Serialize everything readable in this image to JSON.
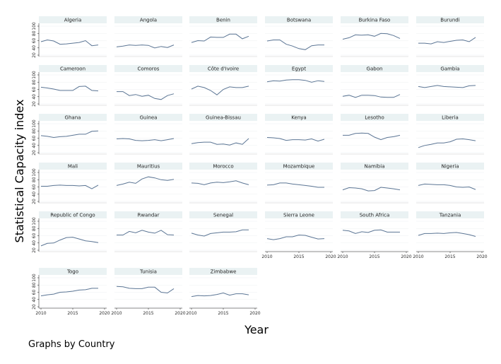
{
  "chart_data": {
    "type": "line",
    "ylabel": "Statistical Capacity index",
    "xlabel": "Year",
    "note": "Graphs by Country",
    "ylim": [
      20,
      100
    ],
    "xlim": [
      2010,
      2020
    ],
    "yticks": [
      "20",
      "40",
      "60",
      "80",
      "100"
    ],
    "xticks": [
      "2010",
      "2015",
      "2020"
    ],
    "x": [
      2010,
      2011,
      2012,
      2013,
      2014,
      2015,
      2016,
      2017,
      2018,
      2019
    ],
    "line_color": "#5b7594",
    "grid": true,
    "series": [
      {
        "name": "Algeria",
        "values": [
          57,
          62,
          59,
          50,
          51,
          53,
          55,
          60,
          46,
          48
        ]
      },
      {
        "name": "Angola",
        "values": [
          43,
          45,
          48,
          47,
          48,
          47,
          40,
          44,
          41,
          48
        ]
      },
      {
        "name": "Benin",
        "values": [
          55,
          60,
          59,
          70,
          69,
          69,
          78,
          78,
          65,
          72
        ]
      },
      {
        "name": "Botswana",
        "values": [
          59,
          62,
          62,
          50,
          45,
          38,
          35,
          46,
          48,
          48
        ]
      },
      {
        "name": "Burkina Faso",
        "values": [
          64,
          68,
          76,
          75,
          76,
          72,
          80,
          79,
          74,
          66
        ]
      },
      {
        "name": "Burundi",
        "values": [
          53,
          53,
          51,
          57,
          55,
          58,
          61,
          62,
          57,
          69
        ]
      },
      {
        "name": "Cameroon",
        "values": [
          66,
          64,
          61,
          57,
          57,
          57,
          68,
          69,
          57,
          56
        ]
      },
      {
        "name": "Comoros",
        "values": [
          54,
          54,
          43,
          46,
          41,
          44,
          35,
          32,
          43,
          48
        ]
      },
      {
        "name": "Côte d'Ivoire",
        "values": [
          61,
          69,
          65,
          57,
          45,
          60,
          67,
          65,
          65,
          69
        ]
      },
      {
        "name": "Egypt",
        "values": [
          81,
          84,
          83,
          86,
          87,
          87,
          85,
          80,
          84,
          82
        ]
      },
      {
        "name": "Gabon",
        "values": [
          41,
          44,
          38,
          44,
          44,
          43,
          39,
          38,
          38,
          46
        ]
      },
      {
        "name": "Gambia",
        "values": [
          68,
          65,
          68,
          71,
          68,
          67,
          66,
          65,
          70,
          71
        ]
      },
      {
        "name": "Ghana",
        "values": [
          67,
          65,
          62,
          64,
          65,
          68,
          71,
          71,
          79,
          80
        ]
      },
      {
        "name": "Guinea",
        "values": [
          58,
          59,
          58,
          54,
          53,
          54,
          56,
          53,
          56,
          59
        ]
      },
      {
        "name": "Guinea-Bissau",
        "values": [
          45,
          48,
          49,
          49,
          43,
          44,
          41,
          47,
          43,
          59
        ]
      },
      {
        "name": "Kenya",
        "values": [
          62,
          61,
          59,
          54,
          56,
          56,
          55,
          58,
          52,
          57
        ]
      },
      {
        "name": "Lesotho",
        "values": [
          68,
          68,
          73,
          74,
          73,
          63,
          56,
          62,
          64,
          68
        ]
      },
      {
        "name": "Liberia",
        "values": [
          34,
          40,
          43,
          47,
          47,
          50,
          57,
          58,
          56,
          53
        ]
      },
      {
        "name": "Mali",
        "values": [
          62,
          62,
          64,
          65,
          64,
          64,
          63,
          64,
          55,
          65
        ]
      },
      {
        "name": "Mauritius",
        "values": [
          64,
          68,
          73,
          70,
          82,
          88,
          85,
          80,
          78,
          81
        ]
      },
      {
        "name": "Morocco",
        "values": [
          71,
          70,
          66,
          71,
          73,
          72,
          74,
          77,
          71,
          66
        ]
      },
      {
        "name": "Mozambique",
        "values": [
          65,
          66,
          71,
          71,
          68,
          66,
          64,
          62,
          59,
          59
        ]
      },
      {
        "name": "Namibia",
        "values": [
          52,
          58,
          57,
          55,
          49,
          50,
          59,
          57,
          55,
          52
        ]
      },
      {
        "name": "Nigeria",
        "values": [
          64,
          68,
          67,
          66,
          66,
          64,
          60,
          59,
          60,
          53
        ]
      },
      {
        "name": "Republic of Congo",
        "values": [
          32,
          39,
          40,
          48,
          55,
          56,
          51,
          46,
          44,
          41
        ]
      },
      {
        "name": "Rwandar",
        "values": [
          62,
          62,
          72,
          68,
          75,
          70,
          67,
          75,
          63,
          62
        ]
      },
      {
        "name": "Senegal",
        "values": [
          67,
          62,
          59,
          66,
          68,
          70,
          70,
          71,
          76,
          76
        ]
      },
      {
        "name": "Sierra Leone",
        "values": [
          52,
          49,
          52,
          57,
          57,
          62,
          61,
          56,
          51,
          52
        ]
      },
      {
        "name": "South Africa",
        "values": [
          75,
          73,
          66,
          71,
          69,
          75,
          76,
          70,
          70,
          70
        ]
      },
      {
        "name": "Tanzania",
        "values": [
          61,
          66,
          66,
          67,
          66,
          68,
          69,
          66,
          63,
          58
        ]
      },
      {
        "name": "Togo",
        "values": [
          50,
          53,
          55,
          60,
          61,
          63,
          66,
          67,
          71,
          71
        ]
      },
      {
        "name": "Tunisia",
        "values": [
          76,
          75,
          71,
          70,
          70,
          74,
          74,
          60,
          58,
          70
        ]
      },
      {
        "name": "Zimbabwe",
        "values": [
          48,
          51,
          50,
          51,
          54,
          58,
          52,
          56,
          56,
          53
        ]
      }
    ]
  }
}
